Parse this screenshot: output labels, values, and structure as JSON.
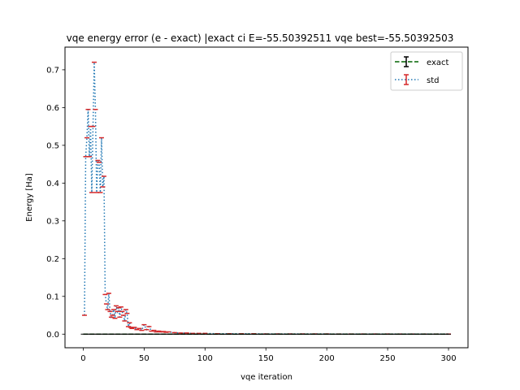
{
  "chart_data": {
    "type": "line",
    "title": "vqe energy error (e - exact) |exact ci E=-55.50392511 vqe best=-55.50392503",
    "xlabel": "vqe iteration",
    "ylabel": "Energy [Ha]",
    "xlim": [
      -15,
      316
    ],
    "ylim": [
      -0.036,
      0.76
    ],
    "xticks": [
      0,
      50,
      100,
      150,
      200,
      250,
      300
    ],
    "xtick_labels": [
      "0",
      "50",
      "100",
      "150",
      "200",
      "250",
      "300"
    ],
    "yticks": [
      0.0,
      0.1,
      0.2,
      0.3,
      0.4,
      0.5,
      0.6,
      0.7
    ],
    "ytick_labels": [
      "0.0",
      "0.1",
      "0.2",
      "0.3",
      "0.4",
      "0.5",
      "0.6",
      "0.7"
    ],
    "grid": false,
    "legend_position": "top-right",
    "series": [
      {
        "name": "exact",
        "style": "dashed",
        "line_color": "#006400",
        "errorbar_color": "#000000",
        "x": [
          0,
          300
        ],
        "values": [
          0,
          0
        ]
      },
      {
        "name": "std",
        "style": "dotted",
        "line_color": "#1f77b4",
        "errorbar_color": "#d62728",
        "x": [
          1,
          2,
          3,
          4,
          5,
          6,
          7,
          8,
          9,
          10,
          11,
          12,
          13,
          14,
          15,
          16,
          17,
          18,
          19,
          20,
          21,
          22,
          23,
          24,
          25,
          26,
          27,
          28,
          29,
          30,
          31,
          32,
          33,
          34,
          35,
          36,
          37,
          38,
          39,
          40,
          42,
          44,
          46,
          48,
          50,
          52,
          54,
          56,
          58,
          60,
          62,
          64,
          66,
          68,
          70,
          75,
          80,
          85,
          90,
          95,
          100,
          110,
          120,
          130,
          140,
          150,
          160,
          170,
          180,
          190,
          200,
          210,
          220,
          230,
          240,
          250,
          260,
          270,
          280,
          290,
          300
        ],
        "values": [
          0.05,
          0.47,
          0.52,
          0.595,
          0.47,
          0.55,
          0.375,
          0.55,
          0.72,
          0.595,
          0.375,
          0.46,
          0.455,
          0.375,
          0.52,
          0.39,
          0.418,
          0.105,
          0.08,
          0.065,
          0.108,
          0.06,
          0.045,
          0.05,
          0.065,
          0.042,
          0.075,
          0.06,
          0.07,
          0.045,
          0.072,
          0.06,
          0.05,
          0.035,
          0.065,
          0.055,
          0.02,
          0.03,
          0.018,
          0.015,
          0.018,
          0.012,
          0.015,
          0.01,
          0.025,
          0.012,
          0.02,
          0.008,
          0.01,
          0.006,
          0.008,
          0.006,
          0.007,
          0.005,
          0.006,
          0.004,
          0.003,
          0.003,
          0.002,
          0.002,
          0.002,
          0.001,
          0.001,
          0.001,
          0.001,
          0.0005,
          0.0005,
          0.0005,
          0.0005,
          0.0005,
          0.0005,
          0.0003,
          0.0003,
          0.0003,
          0.0003,
          0.0003,
          0.0002,
          0.0002,
          0.0002,
          0.0002,
          0.0002
        ]
      }
    ]
  }
}
